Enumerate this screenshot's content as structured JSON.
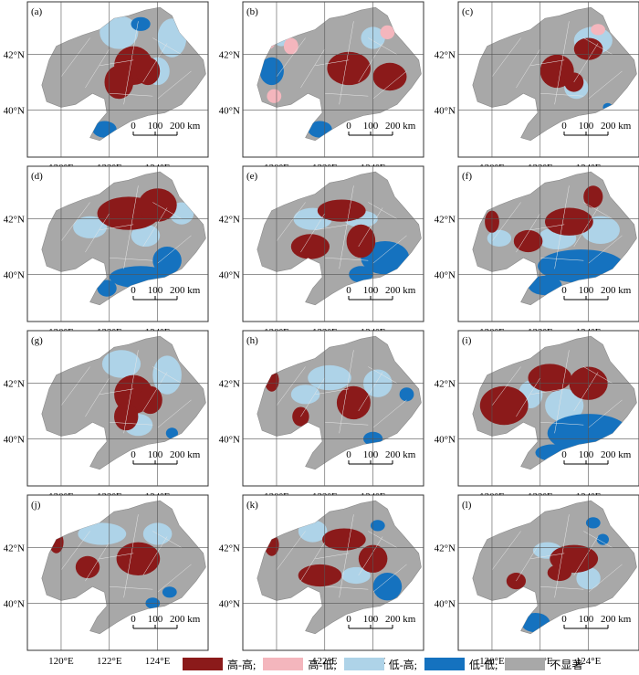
{
  "axes": {
    "lat_ticks": [
      "42°N",
      "40°N"
    ],
    "lon_ticks": [
      "120°E",
      "122°E",
      "124°E"
    ]
  },
  "scalebar": {
    "ticks": [
      "0",
      "100",
      "200 km"
    ]
  },
  "classes": {
    "hh": "高-高;",
    "hl": "高-低;",
    "lh": "低-高;",
    "ll": "低-低;",
    "ns": "不显著"
  },
  "colors": {
    "hh": "#8b1a1a",
    "hl": "#f4b6bd",
    "lh": "#aed3e8",
    "ll": "#1572bf",
    "ns": "#a8a8a8",
    "grid": "#555555",
    "frame": "#333333"
  },
  "panels": [
    {
      "label": "(a)",
      "hh": [
        [
          123.0,
          41.6,
          0.8,
          0.7
        ],
        [
          122.4,
          41.0,
          0.6,
          0.6
        ],
        [
          123.6,
          41.4,
          0.5,
          0.5
        ]
      ],
      "hl": [],
      "lh": [
        [
          122.4,
          42.8,
          0.8,
          0.6
        ],
        [
          124.6,
          42.6,
          0.6,
          0.7
        ],
        [
          124.0,
          41.4,
          0.5,
          0.5
        ]
      ],
      "ll": [
        [
          123.3,
          43.1,
          0.4,
          0.25
        ],
        [
          121.8,
          39.3,
          0.5,
          0.3
        ]
      ]
    },
    {
      "label": "(b)",
      "hh": [
        [
          123.0,
          41.5,
          0.9,
          0.6
        ],
        [
          124.7,
          41.2,
          0.7,
          0.5
        ]
      ],
      "hl": [
        [
          119.7,
          42.6,
          0.3,
          0.4
        ],
        [
          120.6,
          42.3,
          0.3,
          0.3
        ],
        [
          119.9,
          40.5,
          0.3,
          0.25
        ],
        [
          124.6,
          42.8,
          0.3,
          0.25
        ]
      ],
      "lh": [
        [
          120.2,
          42.6,
          0.35,
          0.3
        ],
        [
          124.0,
          42.6,
          0.5,
          0.4
        ]
      ],
      "ll": [
        [
          119.8,
          41.4,
          0.5,
          0.5
        ],
        [
          121.8,
          39.3,
          0.5,
          0.3
        ]
      ]
    },
    {
      "label": "(c)",
      "hh": [
        [
          122.7,
          41.4,
          0.7,
          0.6
        ],
        [
          124.0,
          42.2,
          0.6,
          0.4
        ],
        [
          123.4,
          41.0,
          0.4,
          0.35
        ]
      ],
      "hl": [
        [
          124.4,
          42.9,
          0.3,
          0.2
        ]
      ],
      "lh": [
        [
          124.2,
          42.5,
          0.8,
          0.5
        ],
        [
          123.5,
          40.8,
          0.5,
          0.4
        ]
      ],
      "ll": [
        [
          124.8,
          40.1,
          0.2,
          0.15
        ]
      ]
    },
    {
      "label": "(d)",
      "hh": [
        [
          122.8,
          42.2,
          1.3,
          0.6
        ],
        [
          124.0,
          42.5,
          0.8,
          0.6
        ]
      ],
      "hl": [],
      "lh": [
        [
          121.2,
          41.7,
          0.7,
          0.4
        ],
        [
          123.5,
          41.4,
          0.6,
          0.4
        ],
        [
          125.0,
          42.2,
          0.5,
          0.4
        ]
      ],
      "ll": [
        [
          123.3,
          39.9,
          1.3,
          0.4
        ],
        [
          124.4,
          40.5,
          0.6,
          0.5
        ],
        [
          121.9,
          39.5,
          0.4,
          0.3
        ]
      ]
    },
    {
      "label": "(e)",
      "hh": [
        [
          121.4,
          41.0,
          0.8,
          0.45
        ],
        [
          122.7,
          42.3,
          1.0,
          0.4
        ],
        [
          123.5,
          41.2,
          0.6,
          0.6
        ]
      ],
      "hl": [],
      "lh": [
        [
          121.5,
          42.0,
          0.8,
          0.4
        ],
        [
          123.5,
          42.0,
          0.7,
          0.3
        ]
      ],
      "ll": [
        [
          124.5,
          40.6,
          1.0,
          0.6
        ],
        [
          123.5,
          40.0,
          0.5,
          0.3
        ]
      ]
    },
    {
      "label": "(f)",
      "hh": [
        [
          120.0,
          41.9,
          0.3,
          0.4
        ],
        [
          121.5,
          41.2,
          0.6,
          0.4
        ],
        [
          123.2,
          41.9,
          1.0,
          0.5
        ],
        [
          124.2,
          42.8,
          0.4,
          0.4
        ]
      ],
      "hl": [],
      "lh": [
        [
          122.7,
          41.3,
          0.8,
          0.4
        ],
        [
          124.5,
          41.6,
          0.8,
          0.5
        ],
        [
          120.3,
          41.3,
          0.5,
          0.3
        ]
      ],
      "ll": [
        [
          123.7,
          40.3,
          1.8,
          0.6
        ],
        [
          122.2,
          39.6,
          0.7,
          0.35
        ]
      ]
    },
    {
      "label": "(g)",
      "hh": [
        [
          123.0,
          41.6,
          0.8,
          0.7
        ],
        [
          122.7,
          40.8,
          0.5,
          0.5
        ],
        [
          123.7,
          41.4,
          0.5,
          0.5
        ]
      ],
      "hl": [],
      "lh": [
        [
          122.5,
          42.7,
          0.8,
          0.5
        ],
        [
          124.4,
          42.3,
          0.6,
          0.7
        ],
        [
          123.2,
          40.5,
          0.6,
          0.4
        ]
      ],
      "ll": [
        [
          124.6,
          40.2,
          0.25,
          0.2
        ]
      ]
    },
    {
      "label": "(h)",
      "hh": [
        [
          119.8,
          42.1,
          0.3,
          0.4
        ],
        [
          121.0,
          40.8,
          0.35,
          0.35
        ],
        [
          123.2,
          41.3,
          0.7,
          0.6
        ]
      ],
      "hl": [],
      "lh": [
        [
          122.2,
          42.2,
          0.9,
          0.45
        ],
        [
          121.2,
          41.6,
          0.6,
          0.35
        ],
        [
          124.2,
          42.0,
          0.6,
          0.5
        ]
      ],
      "ll": [
        [
          125.4,
          41.6,
          0.3,
          0.25
        ],
        [
          124.0,
          40.0,
          0.4,
          0.25
        ]
      ]
    },
    {
      "label": "(i)",
      "hh": [
        [
          120.5,
          41.2,
          1.0,
          0.7
        ],
        [
          122.4,
          42.2,
          0.9,
          0.5
        ],
        [
          124.0,
          42.0,
          0.8,
          0.6
        ]
      ],
      "hl": [],
      "lh": [
        [
          123.0,
          41.2,
          0.8,
          0.6
        ],
        [
          121.6,
          41.6,
          0.5,
          0.5
        ]
      ],
      "ll": [
        [
          124.0,
          40.2,
          1.7,
          0.7
        ],
        [
          122.5,
          39.5,
          0.7,
          0.3
        ]
      ]
    },
    {
      "label": "(j)",
      "hh": [
        [
          119.8,
          42.2,
          0.3,
          0.4
        ],
        [
          121.1,
          41.3,
          0.5,
          0.4
        ],
        [
          123.2,
          41.6,
          0.9,
          0.6
        ]
      ],
      "hl": [],
      "lh": [
        [
          121.7,
          42.5,
          1.0,
          0.4
        ],
        [
          124.0,
          42.5,
          0.6,
          0.4
        ]
      ],
      "ll": [
        [
          124.5,
          40.4,
          0.3,
          0.2
        ],
        [
          123.8,
          40.0,
          0.3,
          0.2
        ]
      ]
    },
    {
      "label": "(k)",
      "hh": [
        [
          119.8,
          42.1,
          0.3,
          0.4
        ],
        [
          121.8,
          41.0,
          0.9,
          0.4
        ],
        [
          122.8,
          42.3,
          0.9,
          0.4
        ],
        [
          124.0,
          41.6,
          0.6,
          0.5
        ]
      ],
      "hl": [],
      "lh": [
        [
          121.5,
          42.6,
          0.6,
          0.4
        ],
        [
          123.3,
          41.0,
          0.6,
          0.3
        ]
      ],
      "ll": [
        [
          124.6,
          40.6,
          0.6,
          0.5
        ],
        [
          124.2,
          42.8,
          0.3,
          0.2
        ]
      ]
    },
    {
      "label": "(l)",
      "hh": [
        [
          121.0,
          40.8,
          0.4,
          0.3
        ],
        [
          123.4,
          41.6,
          1.0,
          0.5
        ],
        [
          122.8,
          41.1,
          0.5,
          0.3
        ]
      ],
      "hl": [],
      "lh": [
        [
          124.0,
          40.9,
          0.5,
          0.4
        ],
        [
          122.3,
          41.9,
          0.6,
          0.3
        ]
      ],
      "ll": [
        [
          124.2,
          42.9,
          0.3,
          0.2
        ],
        [
          124.6,
          42.3,
          0.25,
          0.2
        ],
        [
          121.8,
          39.3,
          0.6,
          0.35
        ]
      ]
    }
  ]
}
